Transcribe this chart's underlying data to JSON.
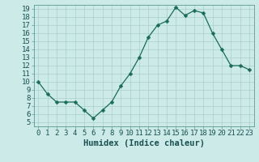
{
  "x": [
    0,
    1,
    2,
    3,
    4,
    5,
    6,
    7,
    8,
    9,
    10,
    11,
    12,
    13,
    14,
    15,
    16,
    17,
    18,
    19,
    20,
    21,
    22,
    23
  ],
  "y": [
    10,
    8.5,
    7.5,
    7.5,
    7.5,
    6.5,
    5.5,
    6.5,
    7.5,
    9.5,
    11.0,
    13.0,
    15.5,
    17.0,
    17.5,
    19.2,
    18.2,
    18.8,
    18.5,
    16.0,
    14.0,
    12.0,
    12.0,
    11.5
  ],
  "line_color": "#1a6b5a",
  "marker": "D",
  "marker_size": 2.5,
  "bg_color": "#cceae8",
  "grid_color": "#aacfcd",
  "xlabel": "Humidex (Indice chaleur)",
  "xlim": [
    -0.5,
    23.5
  ],
  "ylim": [
    4.5,
    19.5
  ],
  "yticks": [
    5,
    6,
    7,
    8,
    9,
    10,
    11,
    12,
    13,
    14,
    15,
    16,
    17,
    18,
    19
  ],
  "xticks": [
    0,
    1,
    2,
    3,
    4,
    5,
    6,
    7,
    8,
    9,
    10,
    11,
    12,
    13,
    14,
    15,
    16,
    17,
    18,
    19,
    20,
    21,
    22,
    23
  ],
  "xtick_labels": [
    "0",
    "1",
    "2",
    "3",
    "4",
    "5",
    "6",
    "7",
    "8",
    "9",
    "10",
    "11",
    "12",
    "13",
    "14",
    "15",
    "16",
    "17",
    "18",
    "19",
    "20",
    "21",
    "22",
    "23"
  ],
  "ytick_labels": [
    "5",
    "6",
    "7",
    "8",
    "9",
    "10",
    "11",
    "12",
    "13",
    "14",
    "15",
    "16",
    "17",
    "18",
    "19"
  ],
  "tick_font_size": 6.5,
  "xlabel_font_size": 7.5,
  "label_color": "#1a5050",
  "spine_color": "#5a9a90"
}
